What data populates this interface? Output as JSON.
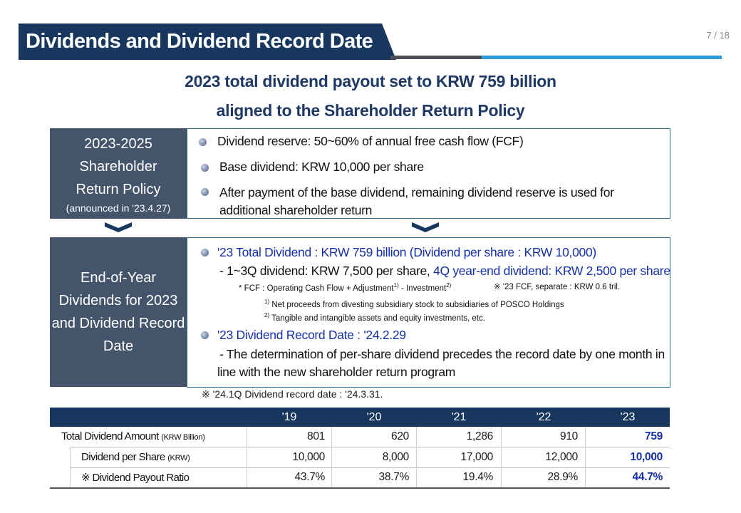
{
  "header": {
    "title": "Dividends and Dividend Record Date",
    "page_number": "7 / 18"
  },
  "subtitle": {
    "line1": "2023 total dividend payout set to KRW 759 billion",
    "line2": "aligned to the Shareholder Return Policy"
  },
  "policy": {
    "title_line1": "2023-2025",
    "title_line2": "Shareholder",
    "title_line3": "Return Policy",
    "note": "(announced in '23.4.27)",
    "bullets": [
      "Dividend reserve: 50~60% of annual free cash flow (FCF)",
      "Base dividend: KRW 10,000 per share",
      "After payment of the base dividend, remaining dividend reserve is used for"
    ],
    "bullet3_cont": "additional shareholder return"
  },
  "year_end": {
    "title_line1": "End-of-Year",
    "title_line2": "Dividends for 2023",
    "title_line3": "and Dividend Record",
    "title_line4": "Date",
    "total_dividend": "'23 Total Dividend : KRW 759 billion (Dividend per share : KRW 10,000)",
    "q_dividend_a": "- 1~3Q dividend: KRW 7,500 per share, ",
    "q_dividend_b": "4Q year-end dividend: KRW 2,500 per share",
    "fcf_formula_a": "* FCF : Operating Cash Flow + Adjustment",
    "fcf_formula_b": " - Investment",
    "fcf_note": "※ '23 FCF, separate : KRW 0.6 tril.",
    "footnote1": "Net proceeds from divesting subsidiary stock to subsidiaries of POSCO Holdings",
    "footnote2": "Tangible and intangible assets and equity investments, etc.",
    "sup1": "1)",
    "sup2": "2)",
    "record_date": "'23 Dividend Record Date : '24.2.29",
    "determination_line1": "- The determination of per-share dividend precedes the record date by one month in",
    "determination_line2": "line with the new shareholder return program",
    "q1_note": "※ '24.1Q Dividend record date : '24.3.31."
  },
  "table": {
    "columns": [
      "'19",
      "'20",
      "'21",
      "'22",
      "'23"
    ],
    "rows": [
      {
        "label": "Total Dividend Amount",
        "unit": "(KRW Billion)",
        "values": [
          "801",
          "620",
          "1,286",
          "910",
          "759"
        ]
      },
      {
        "label": "Dividend per Share",
        "unit": "(KRW)",
        "values": [
          "10,000",
          "8,000",
          "17,000",
          "12,000",
          "10,000"
        ]
      },
      {
        "label": "※ Dividend Payout Ratio",
        "unit": "",
        "values": [
          "43.7%",
          "38.7%",
          "19.4%",
          "28.9%",
          "44.7%"
        ]
      }
    ]
  },
  "colors": {
    "navy": "#17375e",
    "slate": "#44546a",
    "highlight_blue": "#1530a8",
    "accent_blue": "#2e9bd6"
  }
}
